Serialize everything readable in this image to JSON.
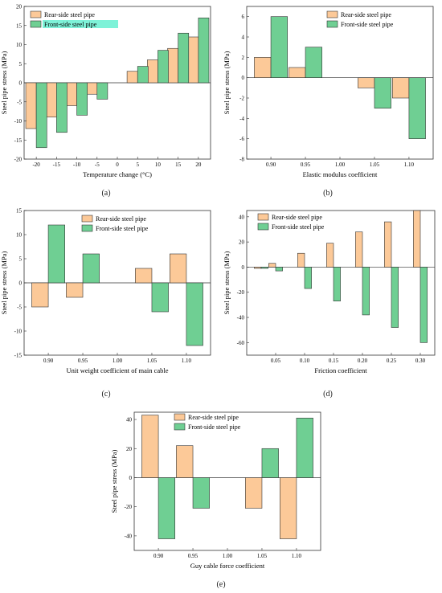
{
  "colors": {
    "rear": "#fcc998",
    "front": "#6fcf93",
    "legend_front_bg": "#7ef2d8"
  },
  "chart_data": [
    {
      "id": "a",
      "type": "bar",
      "label": "(a)",
      "xlabel": "Temperature change (°C)",
      "ylabel": "Steel pipe stress (MPa)",
      "categories": [
        "-20",
        "-15",
        "-10",
        "-5",
        "5",
        "10",
        "15",
        "20"
      ],
      "cat_x": [
        -20,
        -15,
        -10,
        -5,
        5,
        10,
        15,
        20
      ],
      "xlim": [
        -23,
        23
      ],
      "xticks": [
        -20,
        -15,
        -10,
        -5,
        0,
        5,
        10,
        15,
        20
      ],
      "ylim": [
        -20,
        20
      ],
      "yticks": [
        -20,
        -15,
        -10,
        -5,
        0,
        5,
        10,
        15,
        20
      ],
      "bar_width": 2.6,
      "offset": 1.3,
      "series": [
        {
          "name": "Rear-side steel pipe",
          "values": [
            -12,
            -9,
            -6,
            -3,
            3,
            6,
            9,
            12
          ]
        },
        {
          "name": "Front-side steel pipe",
          "values": [
            -17,
            -13,
            -8.5,
            -4.3,
            4.3,
            8.5,
            13,
            17
          ]
        }
      ],
      "legend": "top-left"
    },
    {
      "id": "b",
      "type": "bar",
      "label": "(b)",
      "xlabel": "Elastic modulus coefficient",
      "ylabel": "Steel pipe stress (MPa)",
      "categories": [
        "0.90",
        "0.95",
        "1.05",
        "1.10"
      ],
      "cat_x": [
        0.9,
        0.95,
        1.05,
        1.1
      ],
      "xlim": [
        0.865,
        1.135
      ],
      "xticks": [
        0.9,
        0.95,
        1.0,
        1.05,
        1.1
      ],
      "xtick_labels": [
        "0.90",
        "0.95",
        "1.00",
        "1.05",
        "1.10"
      ],
      "ylim": [
        -8,
        7
      ],
      "yticks": [
        -8,
        -6,
        -4,
        -2,
        0,
        2,
        4,
        6
      ],
      "bar_width": 0.024,
      "offset": 0.012,
      "series": [
        {
          "name": "Rear-side steel pipe",
          "values": [
            2,
            1,
            -1,
            -2
          ]
        },
        {
          "name": "Front-side steel pipe",
          "values": [
            6,
            3,
            -3,
            -6
          ]
        }
      ],
      "legend": "top-right"
    },
    {
      "id": "c",
      "type": "bar",
      "label": "(c)",
      "xlabel": "Unit weight coefficient of main cable",
      "ylabel": "Steel pipe stress (MPa)",
      "categories": [
        "0.90",
        "0.95",
        "1.05",
        "1.10"
      ],
      "cat_x": [
        0.9,
        0.95,
        1.05,
        1.1
      ],
      "xlim": [
        0.865,
        1.135
      ],
      "xticks": [
        0.9,
        0.95,
        1.0,
        1.05,
        1.1
      ],
      "xtick_labels": [
        "0.90",
        "0.95",
        "1.00",
        "1.05",
        "1.10"
      ],
      "ylim": [
        -15,
        15
      ],
      "yticks": [
        -15,
        -10,
        -5,
        0,
        5,
        10,
        15
      ],
      "bar_width": 0.024,
      "offset": 0.012,
      "series": [
        {
          "name": "Rear-side steel pipe",
          "values": [
            -5,
            -3,
            3,
            6
          ]
        },
        {
          "name": "Front-side steel pipe",
          "values": [
            12,
            6,
            -6,
            -13
          ]
        }
      ],
      "legend": "top-center"
    },
    {
      "id": "d",
      "type": "bar",
      "label": "(d)",
      "xlabel": "Friction coefficient",
      "ylabel": "Steel pipe stress (MPa)",
      "categories": [
        "0.025",
        "0.05",
        "0.1",
        "0.15",
        "0.2",
        "0.25",
        "0.3"
      ],
      "cat_x": [
        0.025,
        0.05,
        0.1,
        0.15,
        0.2,
        0.25,
        0.3
      ],
      "xlim": [
        0.0,
        0.325
      ],
      "xticks": [
        0.05,
        0.1,
        0.15,
        0.2,
        0.25,
        0.3
      ],
      "xtick_labels": [
        "0.05",
        "0.10",
        "0.15",
        "0.20",
        "0.25",
        "0.30"
      ],
      "ylim": [
        -70,
        45
      ],
      "yticks": [
        -60,
        -40,
        -20,
        0,
        20,
        40
      ],
      "bar_width": 0.012,
      "offset": 0.006,
      "series": [
        {
          "name": "Rear-side steel pipe",
          "values": [
            -1,
            3,
            11,
            19,
            28,
            36,
            45
          ]
        },
        {
          "name": "Front-side steel pipe",
          "values": [
            -1,
            -3,
            -17,
            -27,
            -38,
            -48,
            -60
          ]
        }
      ],
      "legend": "top-left"
    },
    {
      "id": "e",
      "type": "bar",
      "label": "(e)",
      "xlabel": "Guy cable force coefficient",
      "ylabel": "Steel pipe stress (MPa)",
      "categories": [
        "0.90",
        "0.95",
        "1.05",
        "1.10"
      ],
      "cat_x": [
        0.9,
        0.95,
        1.05,
        1.1
      ],
      "xlim": [
        0.865,
        1.135
      ],
      "xticks": [
        0.9,
        0.95,
        1.0,
        1.05,
        1.1
      ],
      "xtick_labels": [
        "0.90",
        "0.95",
        "1.00",
        "1.05",
        "1.10"
      ],
      "ylim": [
        -50,
        45
      ],
      "yticks": [
        -40,
        -20,
        0,
        20,
        40
      ],
      "bar_width": 0.024,
      "offset": 0.012,
      "series": [
        {
          "name": "Rear-side steel pipe",
          "values": [
            43,
            22,
            -21,
            -42
          ]
        },
        {
          "name": "Front-side steel pipe",
          "values": [
            -42,
            -21,
            20,
            41
          ]
        }
      ],
      "legend": "top-center"
    }
  ]
}
